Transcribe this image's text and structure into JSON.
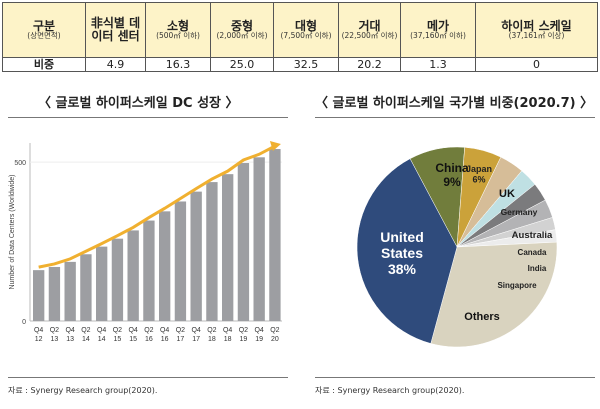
{
  "table": {
    "headers": [
      {
        "main": "구분",
        "sub": "(상면면적)"
      },
      {
        "main": "非식별 데이터 센터",
        "sub": ""
      },
      {
        "main": "소형",
        "sub": "(500㎡ 이하)"
      },
      {
        "main": "중형",
        "sub": "(2,000㎡ 이하)"
      },
      {
        "main": "대형",
        "sub": "(7,500㎡ 이하)"
      },
      {
        "main": "거대",
        "sub": "(22,500㎡ 이하)"
      },
      {
        "main": "메가",
        "sub": "(37,160㎡ 이하)"
      },
      {
        "main": "하이퍼 스케일",
        "sub": "(37,161㎡ 이상)"
      }
    ],
    "row": [
      "비중",
      "4.9",
      "16.3",
      "25.0",
      "32.5",
      "20.2",
      "1.3",
      "0"
    ]
  },
  "left": {
    "title": "〈 글로벌 하이퍼스케일 DC 성장 〉",
    "source": "자료 : Synergy Research group(2020)."
  },
  "right": {
    "title": "〈 글로벌 하이퍼스케일 국가별 비중(2020.7) 〉",
    "source": "자료 : Synergy Research group(2020)."
  },
  "chart_data": [
    {
      "type": "bar",
      "ylabel": "Number of Data Centers (Worldwide)",
      "ylim": [
        0,
        560
      ],
      "yticks": [
        "0",
        "500"
      ],
      "categories": [
        "Q4 12",
        "Q2 13",
        "Q4 13",
        "Q2 14",
        "Q4 14",
        "Q2 15",
        "Q4 15",
        "Q2 16",
        "Q4 16",
        "Q2 17",
        "Q4 17",
        "Q2 18",
        "Q4 18",
        "Q2 19",
        "Q4 19",
        "Q2 20"
      ],
      "values": [
        160,
        170,
        186,
        210,
        234,
        259,
        285,
        316,
        345,
        376,
        407,
        437,
        462,
        497,
        515,
        541
      ],
      "bar_color": "#9d9ea2",
      "trend_color": "#f0b030"
    },
    {
      "type": "pie",
      "slices": [
        {
          "label": "China",
          "value": 9,
          "pct": "9%",
          "color": "#717d3c"
        },
        {
          "label": "Japan",
          "value": 6,
          "pct": "6%",
          "color": "#cba23a"
        },
        {
          "label": "UK",
          "value": 4,
          "color": "#d6bd98"
        },
        {
          "label": "Germany",
          "value": 3,
          "color": "#bfe0e3"
        },
        {
          "label": "Australia",
          "value": 3,
          "color": "#7b7b7d"
        },
        {
          "label": "Canada",
          "value": 3,
          "color": "#b3b3b5"
        },
        {
          "label": "India",
          "value": 2,
          "color": "#d2d2d2"
        },
        {
          "label": "Singapore",
          "value": 2,
          "color": "#ececec"
        },
        {
          "label": "Others",
          "value": 30,
          "color": "#d9d3bf"
        },
        {
          "label": "United States",
          "value": 38,
          "pct": "38%",
          "color": "#2f4b7c"
        }
      ]
    }
  ]
}
